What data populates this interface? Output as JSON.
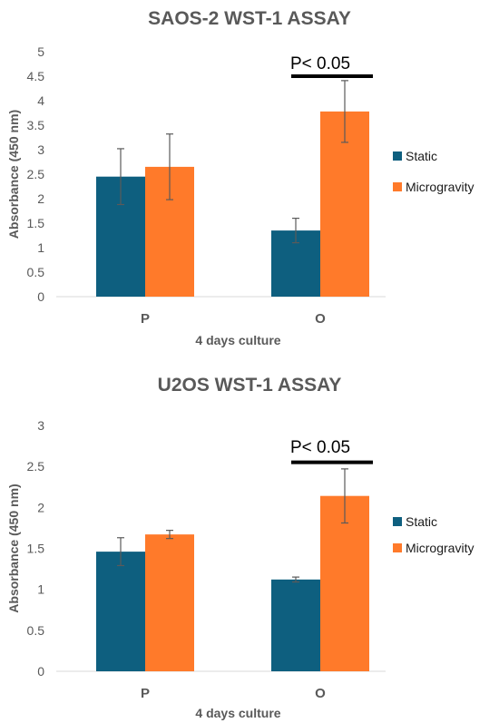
{
  "chart_data": [
    {
      "type": "bar",
      "title": "SAOS-2 WST-1 ASSAY",
      "xlabel": "4 days culture",
      "ylabel": "Absorbance (450 nm)",
      "categories": [
        "P",
        "O"
      ],
      "ylim": [
        0,
        5
      ],
      "yticks": [
        "0",
        "0.5",
        "1",
        "1.5",
        "2",
        "2.5",
        "3",
        "3.5",
        "4",
        "4.5",
        "5"
      ],
      "series": [
        {
          "name": "Static",
          "color": "#0e5f7f",
          "values": [
            2.45,
            1.35
          ],
          "errors": [
            0.57,
            0.25
          ]
        },
        {
          "name": "Microgravity",
          "color": "#ff7a2a",
          "values": [
            2.65,
            3.78
          ],
          "errors": [
            0.67,
            0.63
          ]
        }
      ],
      "legend_position": "right",
      "grid": false,
      "annotation": {
        "text": "P< 0.05",
        "category": "O",
        "y": 4.5
      }
    },
    {
      "type": "bar",
      "title": "U2OS WST-1 ASSAY",
      "xlabel": "4 days culture",
      "ylabel": "Absorbance (450 nm)",
      "categories": [
        "P",
        "O"
      ],
      "ylim": [
        0,
        3
      ],
      "yticks": [
        "0",
        "0.5",
        "1",
        "1.5",
        "2",
        "2.5",
        "3"
      ],
      "series": [
        {
          "name": "Static",
          "color": "#0e5f7f",
          "values": [
            1.46,
            1.12
          ],
          "errors": [
            0.17,
            0.03
          ]
        },
        {
          "name": "Microgravity",
          "color": "#ff7a2a",
          "values": [
            1.67,
            2.14
          ],
          "errors": [
            0.05,
            0.33
          ]
        }
      ],
      "legend_position": "right",
      "grid": false,
      "annotation": {
        "text": "P< 0.05",
        "category": "O",
        "y": 2.55
      }
    }
  ]
}
